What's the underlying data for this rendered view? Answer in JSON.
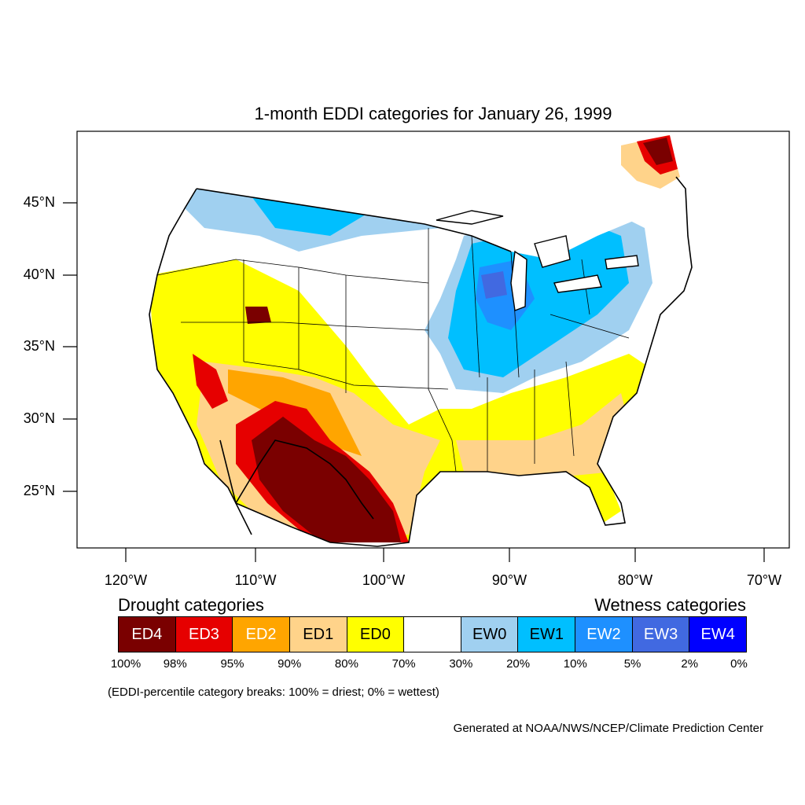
{
  "title": "1-month EDDI categories for January 26, 1999",
  "axes": {
    "lat_labels": [
      "45°N",
      "40°N",
      "35°N",
      "30°N",
      "25°N"
    ],
    "lon_labels": [
      "120°W",
      "110°W",
      "100°W",
      "90°W",
      "80°W",
      "70°W"
    ]
  },
  "legend": {
    "drought_heading": "Drought categories",
    "wetness_heading": "Wetness categories",
    "categories": [
      {
        "label": "ED4",
        "color": "#7a0000",
        "text_color": "#ffffff"
      },
      {
        "label": "ED3",
        "color": "#e60000",
        "text_color": "#ffffff"
      },
      {
        "label": "ED2",
        "color": "#ffa500",
        "text_color": "#ffffff"
      },
      {
        "label": "ED1",
        "color": "#ffd38a",
        "text_color": "#000000"
      },
      {
        "label": "ED0",
        "color": "#ffff00",
        "text_color": "#000000"
      },
      {
        "label": "",
        "color": "#ffffff",
        "text_color": "#000000"
      },
      {
        "label": "EW0",
        "color": "#a0d0f0",
        "text_color": "#000000"
      },
      {
        "label": "EW1",
        "color": "#00bfff",
        "text_color": "#000000"
      },
      {
        "label": "EW2",
        "color": "#1e90ff",
        "text_color": "#ffffff"
      },
      {
        "label": "EW3",
        "color": "#4169e1",
        "text_color": "#ffffff"
      },
      {
        "label": "EW4",
        "color": "#0000ff",
        "text_color": "#ffffff"
      }
    ],
    "breaks": [
      "100%",
      "98%",
      "95%",
      "90%",
      "80%",
      "70%",
      "30%",
      "20%",
      "10%",
      "5%",
      "2%",
      "0%"
    ]
  },
  "note": "(EDDI-percentile category breaks: 100% = driest; 0% = wettest)",
  "credit": "Generated at NOAA/NWS/NCEP/Climate Prediction Center"
}
